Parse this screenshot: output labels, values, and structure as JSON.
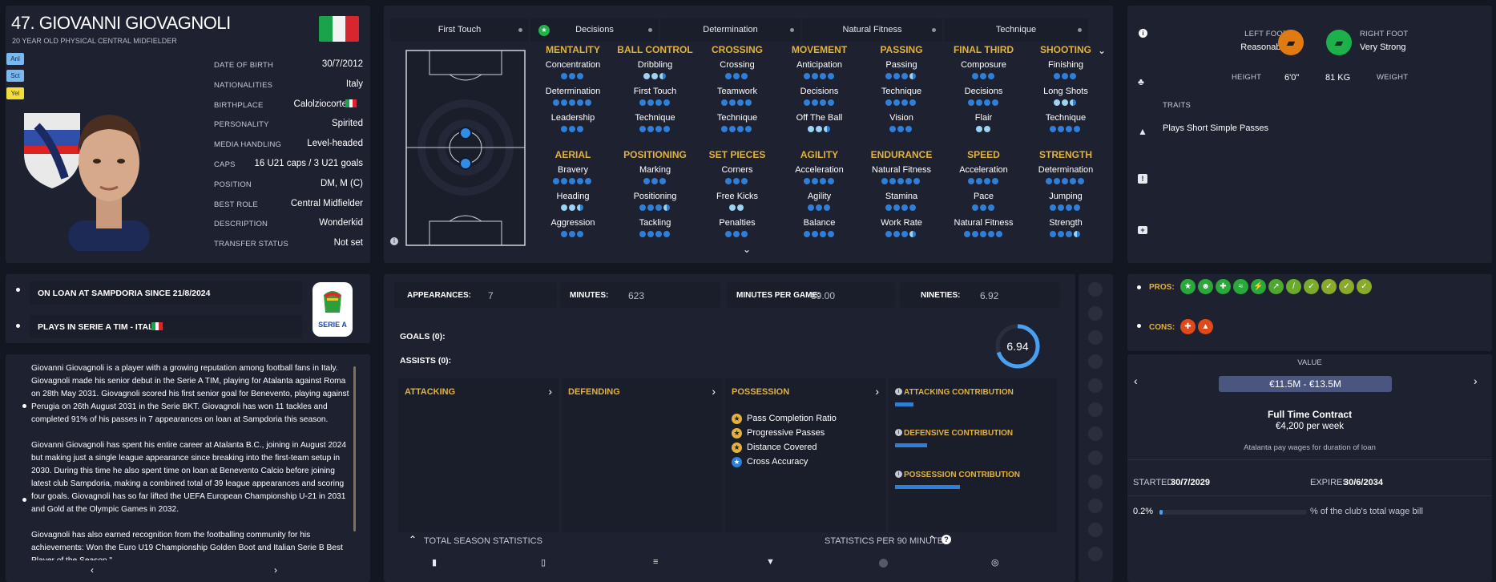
{
  "player": {
    "title": "47. GIOVANNI GIOVAGNOLI",
    "subtitle": "20 YEAR OLD PHYSICAL CENTRAL MIDFIELDER",
    "tags": [
      "Anl",
      "Sct",
      "Yel"
    ],
    "details": [
      {
        "label": "DATE OF BIRTH",
        "value": "30/7/2012"
      },
      {
        "label": "NATIONALITIES",
        "value": "Italy"
      },
      {
        "label": "BIRTHPLACE",
        "value": "Calolziocorte"
      },
      {
        "label": "PERSONALITY",
        "value": "Spirited"
      },
      {
        "label": "MEDIA HANDLING",
        "value": "Level-headed"
      },
      {
        "label": "CAPS",
        "value": "16 U21 caps / 3 U21 goals"
      },
      {
        "label": "POSITION",
        "value": "DM, M (C)"
      },
      {
        "label": "BEST ROLE",
        "value": "Central Midfielder"
      },
      {
        "label": "DESCRIPTION",
        "value": "Wonderkid"
      },
      {
        "label": "TRANSFER STATUS",
        "value": "Not set"
      }
    ]
  },
  "tabs": [
    "First Touch",
    "Decisions",
    "Determination",
    "Natural Fitness",
    "Technique"
  ],
  "attr_groups": [
    {
      "header": "MENTALITY",
      "items": [
        {
          "name": "Concentration",
          "dots": "ddd"
        },
        {
          "name": "Determination",
          "dots": "ddddd"
        },
        {
          "name": "Leadership",
          "dots": "ddd"
        }
      ]
    },
    {
      "header": "BALL CONTROL",
      "items": [
        {
          "name": "Dribbling",
          "dots": "llh"
        },
        {
          "name": "First Touch",
          "dots": "dddd"
        },
        {
          "name": "Technique",
          "dots": "dddd"
        }
      ]
    },
    {
      "header": "CROSSING",
      "items": [
        {
          "name": "Crossing",
          "dots": "ddd"
        },
        {
          "name": "Teamwork",
          "dots": "dddd"
        },
        {
          "name": "Technique",
          "dots": "dddd"
        }
      ]
    },
    {
      "header": "MOVEMENT",
      "items": [
        {
          "name": "Anticipation",
          "dots": "dddd"
        },
        {
          "name": "Decisions",
          "dots": "dddd"
        },
        {
          "name": "Off The Ball",
          "dots": "llh"
        }
      ]
    },
    {
      "header": "PASSING",
      "items": [
        {
          "name": "Passing",
          "dots": "dddh"
        },
        {
          "name": "Technique",
          "dots": "dddd"
        },
        {
          "name": "Vision",
          "dots": "ddd"
        }
      ]
    },
    {
      "header": "FINAL THIRD",
      "items": [
        {
          "name": "Composure",
          "dots": "ddd"
        },
        {
          "name": "Decisions",
          "dots": "dddd"
        },
        {
          "name": "Flair",
          "dots": "ll"
        }
      ]
    },
    {
      "header": "SHOOTING",
      "items": [
        {
          "name": "Finishing",
          "dots": "ddd"
        },
        {
          "name": "Long Shots",
          "dots": "llh"
        },
        {
          "name": "Technique",
          "dots": "dddd"
        }
      ]
    },
    {
      "header": "AERIAL",
      "items": [
        {
          "name": "Bravery",
          "dots": "ddddd"
        },
        {
          "name": "Heading",
          "dots": "llh"
        },
        {
          "name": "Aggression",
          "dots": "ddd"
        }
      ]
    },
    {
      "header": "POSITIONING",
      "items": [
        {
          "name": "Marking",
          "dots": "ddd"
        },
        {
          "name": "Positioning",
          "dots": "dddh"
        },
        {
          "name": "Tackling",
          "dots": "dddd"
        }
      ]
    },
    {
      "header": "SET PIECES",
      "items": [
        {
          "name": "Corners",
          "dots": "ddd"
        },
        {
          "name": "Free Kicks",
          "dots": "ll"
        },
        {
          "name": "Penalties",
          "dots": "ddd"
        }
      ]
    },
    {
      "header": "AGILITY",
      "items": [
        {
          "name": "Acceleration",
          "dots": "dddd"
        },
        {
          "name": "Agility",
          "dots": "ddd"
        },
        {
          "name": "Balance",
          "dots": "dddd"
        }
      ]
    },
    {
      "header": "ENDURANCE",
      "items": [
        {
          "name": "Natural Fitness",
          "dots": "ddddd"
        },
        {
          "name": "Stamina",
          "dots": "dddd"
        },
        {
          "name": "Work Rate",
          "dots": "dddh"
        }
      ]
    },
    {
      "header": "SPEED",
      "items": [
        {
          "name": "Acceleration",
          "dots": "dddd"
        },
        {
          "name": "Pace",
          "dots": "ddd"
        },
        {
          "name": "Natural Fitness",
          "dots": "ddddd"
        }
      ]
    },
    {
      "header": "STRENGTH",
      "items": [
        {
          "name": "Determination",
          "dots": "ddddd"
        },
        {
          "name": "Jumping",
          "dots": "dddd"
        },
        {
          "name": "Strength",
          "dots": "dddh"
        }
      ]
    }
  ],
  "physical": {
    "left_foot_label": "LEFT FOOT",
    "left_foot": "Reasonable",
    "right_foot_label": "RIGHT FOOT",
    "right_foot": "Very Strong",
    "height_label": "HEIGHT",
    "height": "6'0\"",
    "weight": "81 KG",
    "weight_label": "WEIGHT",
    "traits_label": "TRAITS",
    "trait": "Plays Short Simple Passes"
  },
  "loan": {
    "line1": "ON LOAN AT SAMPDORIA SINCE 21/8/2024",
    "line2": "PLAYS IN SERIE A TIM - ITALY",
    "league_logo": "SERIE A"
  },
  "bio": {
    "p1": "Giovanni Giovagnoli is a player with a growing reputation among football fans in Italy. Giovagnoli made his senior debut in the Serie A TIM, playing for Atalanta against Roma on 28th May 2031. Giovagnoli scored his first senior goal for Benevento, playing against Perugia on 26th August 2031 in the Serie BKT. Giovagnoli has won 11 tackles and completed 91% of his passes in 7 appearances on loan at Sampdoria this season.",
    "p2": "Giovanni Giovagnoli has spent his entire career at Atalanta B.C., joining in August 2024 but making just a single league appearance since breaking into the first-team setup in 2030. During this time he also spent time on loan at Benevento Calcio before joining latest club Sampdoria, making a combined total of 39 league appearances and scoring four goals. Giovagnoli has so far lifted the UEFA European Championship U-21 in 2031 and Gold at the Olympic Games in 2032.",
    "p3": "Giovagnoli has also earned recognition from the footballing community for his achievements: Won the Euro U19 Championship Golden Boot and Italian Serie B Best Player of the Season.\""
  },
  "stats": {
    "appearances_label": "APPEARANCES:",
    "appearances": "7",
    "minutes_label": "MINUTES:",
    "minutes": "623",
    "mpg_label": "MINUTES PER GAME:",
    "mpg": "89.00",
    "nineties_label": "NINETIES:",
    "nineties": "6.92",
    "goals": "GOALS (0):",
    "assists": "ASSISTS (0):",
    "rating": "6.94",
    "rating_fraction": 0.7
  },
  "contrib": {
    "attacking": "ATTACKING",
    "defending": "DEFENDING",
    "possession": "POSSESSION",
    "possession_items": [
      "Pass Completion Ratio",
      "Progressive Passes",
      "Distance Covered",
      "Cross Accuracy"
    ],
    "att_contrib": "ATTACKING CONTRIBUTION",
    "att_level": 0.25,
    "def_contrib": "DEFENSIVE CONTRIBUTION",
    "def_level": 0.4,
    "pos_contrib": "POSSESSION CONTRIBUTION",
    "pos_level": 0.85,
    "total_season": "TOTAL SEASON STATISTICS",
    "per90": "STATISTICS PER 90 MINUTES"
  },
  "pros_label": "PROS:",
  "cons_label": "CONS:",
  "value": {
    "label": "VALUE",
    "range": "€11.5M - €13.5M",
    "contract": "Full Time Contract",
    "wage": "€4,200 per week",
    "note": "Atalanta pay wages for duration of loan",
    "started_label": "STARTED",
    "started": "30/7/2029",
    "expires_label": "EXPIRES",
    "expires": "30/6/2034",
    "wage_pct": "0.2%",
    "wage_pct_level": 0.02,
    "wage_bill": "% of the club's total wage bill"
  }
}
